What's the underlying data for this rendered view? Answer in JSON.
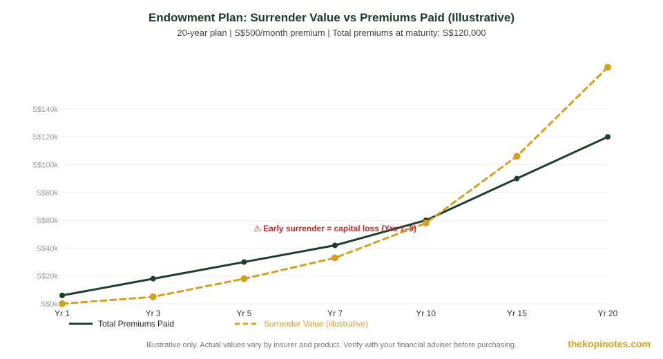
{
  "chart_data": {
    "type": "line",
    "title": "Endowment Plan: Surrender Value vs Premiums Paid (Illustrative)",
    "subtitle": "20-year plan | S$500/month premium | Total premiums at maturity: S$120,000",
    "categories": [
      "Yr 1",
      "Yr 3",
      "Yr 5",
      "Yr 7",
      "Yr 10",
      "Yr 15",
      "Yr 20"
    ],
    "y_ticks": [
      "S$0k",
      "S$20k",
      "S$40k",
      "S$60k",
      "S$80k",
      "S$100k",
      "S$120k",
      "S$140k"
    ],
    "ylim": [
      0,
      140000
    ],
    "grid": true,
    "legend_position": "bottom-left",
    "series": [
      {
        "name": "Total Premiums Paid",
        "values": [
          6000,
          18000,
          30000,
          42000,
          60000,
          90000,
          120000
        ],
        "color": "#1e3d2b",
        "style": "solid"
      },
      {
        "name": "Surrender Value (illustrative)",
        "values": [
          0,
          5000,
          18000,
          33000,
          58000,
          106000,
          170000
        ],
        "color": "#d4a020",
        "style": "dashed"
      }
    ],
    "annotations": [
      {
        "text": "⚠ Early surrender = capital loss (Yrs 1–9)",
        "x_category": "Yr 7",
        "y": 54000,
        "color": "#c62828"
      }
    ]
  },
  "footnote": "Illustrative only. Actual values vary by insurer and product. Verify with your financial adviser before purchasing.",
  "brand": "thekopinotes.com"
}
